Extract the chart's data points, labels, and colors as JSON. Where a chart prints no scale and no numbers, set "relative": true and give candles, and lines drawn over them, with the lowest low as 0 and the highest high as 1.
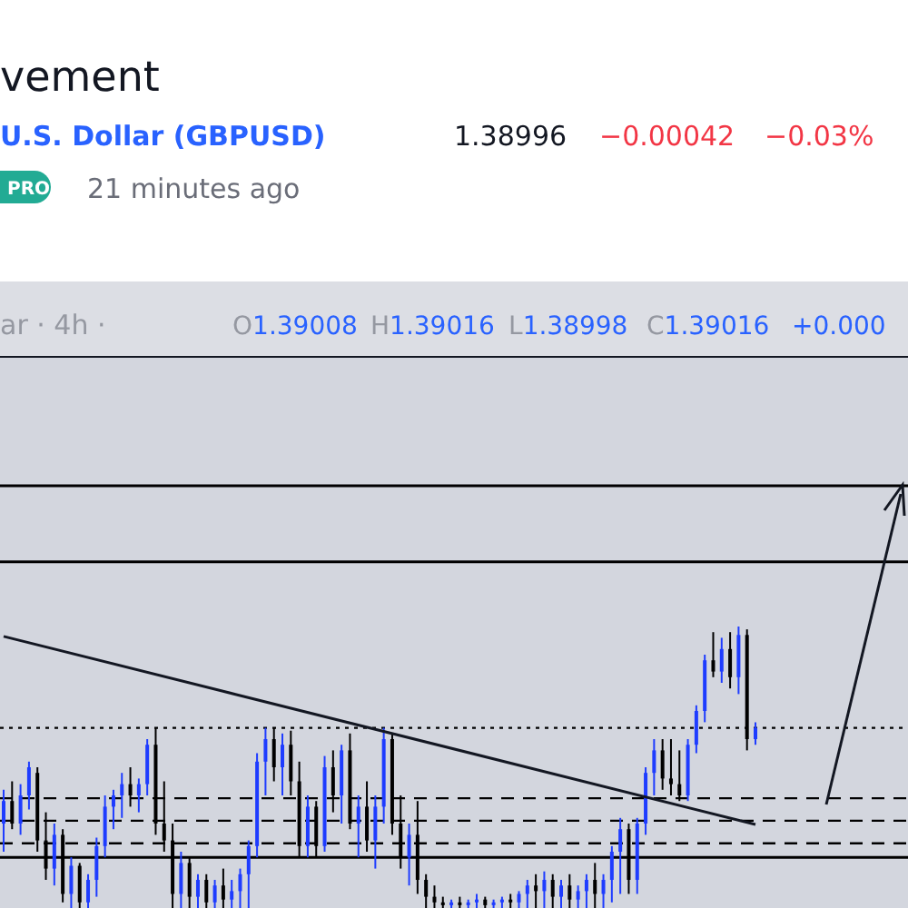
{
  "chart_data": {
    "type": "candlestick",
    "title": "vement",
    "subtitle": "U.S. Dollar (GBPUSD)",
    "relative": true,
    "annotations": [
      "1.38996",
      "−0.00042",
      "−0.03%",
      "PRO",
      "21 minutes ago",
      "ar · 4h ·",
      "O1.39008",
      "H1.39016",
      "L1.38998",
      "C1.39016",
      "+0.000"
    ],
    "categories": [
      null,
      null,
      null,
      null,
      null,
      null,
      null,
      null,
      null,
      null,
      null,
      null,
      null,
      null,
      null,
      null,
      null,
      null,
      null,
      null,
      null,
      null,
      null,
      null,
      null,
      null,
      null,
      null,
      null,
      null,
      null,
      null,
      null,
      null,
      null,
      null,
      null,
      null,
      null,
      null,
      null,
      null,
      null,
      null,
      null,
      null,
      null,
      null,
      null,
      null,
      null,
      null,
      null,
      null,
      null,
      null,
      null,
      null,
      null,
      null,
      null,
      null,
      null,
      null,
      null,
      null,
      null,
      null,
      null,
      null,
      null,
      null,
      null,
      null,
      null,
      null,
      null,
      null,
      null,
      null,
      null,
      null,
      null,
      null,
      null,
      null,
      null,
      null,
      null,
      null
    ],
    "colors": [
      "#1e3cff",
      "#000000",
      "#1e3cff",
      "#1e3cff",
      "#000000",
      "#000000",
      "#1e3cff",
      "#000000",
      "#1e3cff",
      "#000000",
      "#1e3cff",
      "#1e3cff",
      "#1e3cff",
      "#1e3cff",
      "#1e3cff",
      "#000000",
      "#1e3cff",
      "#1e3cff",
      "#000000",
      "#000000",
      "#000000",
      "#1e3cff",
      "#000000",
      "#1e3cff",
      "#000000",
      "#1e3cff",
      "#000000",
      "#1e3cff",
      "#1e3cff",
      "#1e3cff",
      "#1e3cff",
      "#1e3cff",
      "#000000",
      "#1e3cff",
      "#000000",
      "#000000",
      "#1e3cff",
      "#000000",
      "#1e3cff",
      "#000000",
      "#1e3cff",
      "#000000",
      "#1e3cff",
      "#000000",
      "#1e3cff",
      "#1e3cff",
      "#000000",
      "#000000",
      "#1e3cff",
      "#000000",
      "#000000",
      "#000000",
      "#000000",
      "#1e3cff",
      "#000000",
      "#1e3cff",
      "#1e3cff",
      "#000000",
      "#1e3cff",
      "#1e3cff",
      "#000000",
      "#1e3cff",
      "#1e3cff",
      "#000000",
      "#1e3cff",
      "#000000",
      "#1e3cff",
      "#000000",
      "#1e3cff",
      "#1e3cff",
      "#000000",
      "#1e3cff",
      "#1e3cff",
      "#1e3cff",
      "#000000",
      "#1e3cff",
      "#1e3cff",
      "#1e3cff",
      "#000000",
      "#000000",
      "#000000",
      "#1e3cff",
      "#1e3cff",
      "#1e3cff",
      "#000000",
      "#1e3cff",
      "#000000",
      "#1e3cff",
      "#000000",
      "#1e3cff"
    ],
    "ohlc": [
      [
        0.3,
        0.42,
        0.2,
        0.38
      ],
      [
        0.38,
        0.45,
        0.28,
        0.3
      ],
      [
        0.3,
        0.44,
        0.26,
        0.4
      ],
      [
        0.4,
        0.52,
        0.35,
        0.5
      ],
      [
        0.48,
        0.5,
        0.2,
        0.24
      ],
      [
        0.24,
        0.34,
        0.1,
        0.14
      ],
      [
        0.14,
        0.3,
        0.08,
        0.26
      ],
      [
        0.26,
        0.28,
        0.02,
        0.05
      ],
      [
        0.05,
        0.18,
        0.0,
        0.15
      ],
      [
        0.15,
        0.16,
        0.0,
        0.02
      ],
      [
        0.02,
        0.12,
        0.0,
        0.1
      ],
      [
        0.1,
        0.25,
        0.04,
        0.22
      ],
      [
        0.22,
        0.4,
        0.18,
        0.36
      ],
      [
        0.36,
        0.42,
        0.28,
        0.4
      ],
      [
        0.4,
        0.48,
        0.32,
        0.44
      ],
      [
        0.44,
        0.5,
        0.36,
        0.4
      ],
      [
        0.4,
        0.46,
        0.34,
        0.44
      ],
      [
        0.44,
        0.6,
        0.4,
        0.58
      ],
      [
        0.58,
        0.64,
        0.26,
        0.3
      ],
      [
        0.3,
        0.45,
        0.2,
        0.24
      ],
      [
        0.24,
        0.3,
        0.0,
        0.05
      ],
      [
        0.05,
        0.2,
        0.0,
        0.16
      ],
      [
        0.16,
        0.18,
        0.0,
        0.04
      ],
      [
        0.04,
        0.12,
        0.0,
        0.1
      ],
      [
        0.1,
        0.12,
        0.0,
        0.02
      ],
      [
        0.02,
        0.1,
        0.0,
        0.08
      ],
      [
        0.08,
        0.14,
        0.0,
        0.03
      ],
      [
        0.03,
        0.1,
        0.0,
        0.06
      ],
      [
        0.06,
        0.14,
        0.0,
        0.12
      ],
      [
        0.12,
        0.24,
        0.0,
        0.22
      ],
      [
        0.22,
        0.55,
        0.18,
        0.52
      ],
      [
        0.52,
        0.64,
        0.4,
        0.6
      ],
      [
        0.6,
        0.64,
        0.45,
        0.5
      ],
      [
        0.5,
        0.62,
        0.4,
        0.58
      ],
      [
        0.58,
        0.63,
        0.4,
        0.45
      ],
      [
        0.45,
        0.52,
        0.18,
        0.22
      ],
      [
        0.22,
        0.4,
        0.18,
        0.36
      ],
      [
        0.36,
        0.38,
        0.18,
        0.22
      ],
      [
        0.22,
        0.54,
        0.2,
        0.5
      ],
      [
        0.5,
        0.56,
        0.34,
        0.4
      ],
      [
        0.4,
        0.58,
        0.3,
        0.56
      ],
      [
        0.56,
        0.62,
        0.28,
        0.3
      ],
      [
        0.3,
        0.4,
        0.18,
        0.36
      ],
      [
        0.36,
        0.45,
        0.2,
        0.24
      ],
      [
        0.24,
        0.4,
        0.14,
        0.36
      ],
      [
        0.36,
        0.64,
        0.3,
        0.6
      ],
      [
        0.6,
        0.62,
        0.26,
        0.3
      ],
      [
        0.3,
        0.4,
        0.14,
        0.18
      ],
      [
        0.18,
        0.3,
        0.08,
        0.26
      ],
      [
        0.26,
        0.38,
        0.05,
        0.1
      ],
      [
        0.1,
        0.12,
        0.0,
        0.04
      ],
      [
        0.04,
        0.08,
        0.0,
        0.02
      ],
      [
        0.02,
        0.04,
        0.0,
        0.01
      ],
      [
        0.01,
        0.03,
        0.0,
        0.02
      ],
      [
        0.02,
        0.04,
        0.0,
        0.01
      ],
      [
        0.01,
        0.03,
        0.0,
        0.02
      ],
      [
        0.02,
        0.05,
        0.0,
        0.03
      ],
      [
        0.03,
        0.04,
        0.0,
        0.01
      ],
      [
        0.01,
        0.03,
        0.0,
        0.02
      ],
      [
        0.02,
        0.04,
        0.0,
        0.03
      ],
      [
        0.03,
        0.05,
        0.0,
        0.02
      ],
      [
        0.02,
        0.06,
        0.0,
        0.05
      ],
      [
        0.05,
        0.1,
        0.0,
        0.08
      ],
      [
        0.08,
        0.12,
        0.0,
        0.06
      ],
      [
        0.06,
        0.13,
        0.0,
        0.1
      ],
      [
        0.1,
        0.12,
        0.0,
        0.04
      ],
      [
        0.04,
        0.1,
        0.0,
        0.08
      ],
      [
        0.08,
        0.12,
        0.0,
        0.03
      ],
      [
        0.03,
        0.08,
        0.0,
        0.06
      ],
      [
        0.06,
        0.12,
        0.0,
        0.1
      ],
      [
        0.1,
        0.16,
        0.0,
        0.05
      ],
      [
        0.05,
        0.12,
        0.0,
        0.1
      ],
      [
        0.1,
        0.22,
        0.02,
        0.2
      ],
      [
        0.2,
        0.32,
        0.05,
        0.28
      ],
      [
        0.28,
        0.3,
        0.05,
        0.1
      ],
      [
        0.1,
        0.32,
        0.05,
        0.3
      ],
      [
        0.3,
        0.5,
        0.26,
        0.48
      ],
      [
        0.48,
        0.6,
        0.4,
        0.56
      ],
      [
        0.56,
        0.6,
        0.42,
        0.46
      ],
      [
        0.46,
        0.6,
        0.4,
        0.44
      ],
      [
        0.44,
        0.56,
        0.38,
        0.4
      ],
      [
        0.4,
        0.6,
        0.38,
        0.58
      ],
      [
        0.58,
        0.72,
        0.55,
        0.7
      ],
      [
        0.7,
        0.9,
        0.66,
        0.88
      ],
      [
        0.88,
        0.98,
        0.82,
        0.84
      ],
      [
        0.84,
        0.96,
        0.8,
        0.92
      ],
      [
        0.92,
        0.98,
        0.78,
        0.82
      ],
      [
        0.82,
        1.0,
        0.76,
        0.97
      ],
      [
        0.97,
        0.99,
        0.56,
        0.6
      ],
      [
        0.6,
        0.66,
        0.58,
        0.64
      ]
    ],
    "series": [
      {
        "type": "line",
        "color": "#131722",
        "values": [
          0.965,
          null,
          null,
          null,
          null,
          null,
          null,
          null,
          null,
          null,
          null,
          null,
          null,
          null,
          null,
          null,
          null,
          null,
          null,
          null,
          null,
          null,
          null,
          null,
          null,
          null,
          null,
          null,
          null,
          null,
          null,
          null,
          null,
          null,
          null,
          null,
          null,
          null,
          null,
          null,
          null,
          null,
          null,
          null,
          null,
          null,
          null,
          null,
          null,
          null,
          null,
          null,
          null,
          null,
          null,
          null,
          null,
          null,
          null,
          null,
          null,
          null,
          null,
          null,
          null,
          null,
          null,
          null,
          null,
          null,
          null,
          null,
          null,
          null,
          null,
          null,
          null,
          null,
          null,
          null,
          null,
          null,
          null,
          null,
          null,
          null,
          null,
          null,
          null,
          0.297
        ]
      }
    ],
    "ref_lines": [
      {
        "axis": "y",
        "value": 1.23,
        "color": "#000000",
        "line_style": "solid"
      },
      {
        "axis": "y",
        "value": 0.18,
        "color": "#000000",
        "line_style": "solid"
      },
      {
        "axis": "y",
        "value": 0.64,
        "color": "#000000",
        "line_style": "dotted"
      },
      {
        "axis": "y",
        "value": 0.39,
        "color": "#000000",
        "line_style": "dashed"
      },
      {
        "axis": "y",
        "value": 0.31,
        "color": "#000000",
        "line_style": "dashed"
      },
      {
        "axis": "y",
        "value": 0.23,
        "color": "#000000",
        "line_style": "dashed"
      },
      {
        "axis": "y",
        "value": 1.5,
        "color": "#000000",
        "line_style": "solid"
      }
    ]
  }
}
